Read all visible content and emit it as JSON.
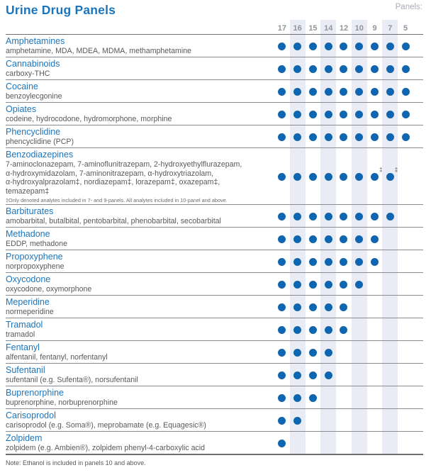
{
  "title": "Urine Drug Panels",
  "panels_label": "Panels:",
  "columns": [
    17,
    16,
    15,
    14,
    12,
    10,
    9,
    7,
    5
  ],
  "striped_columns": [
    16,
    14,
    10,
    7
  ],
  "colors": {
    "accent_blue": "#1C75BC",
    "dot_blue": "#0F66B0",
    "stripe": "#E9ECF4",
    "header_gray": "#939598",
    "text_gray": "#58595B"
  },
  "rows": [
    {
      "name": "Amphetamines",
      "analytes": "amphetamine, MDA, MDEA, MDMA, methamphetamine",
      "panels": [
        17,
        16,
        15,
        14,
        12,
        10,
        9,
        7,
        5
      ]
    },
    {
      "name": "Cannabinoids",
      "analytes": "carboxy-THC",
      "panels": [
        17,
        16,
        15,
        14,
        12,
        10,
        9,
        7,
        5
      ]
    },
    {
      "name": "Cocaine",
      "analytes": "benzoylecgonine",
      "panels": [
        17,
        16,
        15,
        14,
        12,
        10,
        9,
        7,
        5
      ]
    },
    {
      "name": "Opiates",
      "analytes": "codeine, hydrocodone, hydromorphone, morphine",
      "panels": [
        17,
        16,
        15,
        14,
        12,
        10,
        9,
        7,
        5
      ]
    },
    {
      "name": "Phencyclidine",
      "analytes": "phencyclidine (PCP)",
      "panels": [
        17,
        16,
        15,
        14,
        12,
        10,
        9,
        7,
        5
      ]
    },
    {
      "name": "Benzodiazepines",
      "analytes": "7-aminoclonazepam, 7-aminoflunitrazepam, 2-hydroxyethylflurazepam,\nα-hydroxymidazolam, 7-aminonitrazepam, α-hydroxytriazolam,\nα-hydroxyalprazolam‡, nordiazepam‡, lorazepam‡, oxazepam‡,\ntemazepam‡",
      "panels": [
        17,
        16,
        15,
        14,
        12,
        10,
        9,
        7
      ],
      "dagger_panels": [
        9,
        7
      ],
      "footnote": "‡Only denoted analytes included in 7- and 9-panels. All analytes included in 10-panel and above."
    },
    {
      "name": "Barbiturates",
      "analytes": "amobarbital, butalbital, pentobarbital, phenobarbital, secobarbital",
      "panels": [
        17,
        16,
        15,
        14,
        12,
        10,
        9,
        7
      ]
    },
    {
      "name": "Methadone",
      "analytes": "EDDP, methadone",
      "panels": [
        17,
        16,
        15,
        14,
        12,
        10,
        9
      ]
    },
    {
      "name": "Propoxyphene",
      "analytes": "norpropoxyphene",
      "panels": [
        17,
        16,
        15,
        14,
        12,
        10,
        9
      ]
    },
    {
      "name": "Oxycodone",
      "analytes": "oxycodone, oxymorphone",
      "panels": [
        17,
        16,
        15,
        14,
        12,
        10
      ]
    },
    {
      "name": "Meperidine",
      "analytes": "normeperidine",
      "panels": [
        17,
        16,
        15,
        14,
        12
      ]
    },
    {
      "name": "Tramadol",
      "analytes": "tramadol",
      "panels": [
        17,
        16,
        15,
        14,
        12
      ]
    },
    {
      "name": "Fentanyl",
      "analytes": "alfentanil, fentanyl, norfentanyl",
      "panels": [
        17,
        16,
        15,
        14
      ]
    },
    {
      "name": "Sufentanil",
      "analytes": "sufentanil (e.g. Sufenta®), norsufentanil",
      "panels": [
        17,
        16,
        15,
        14
      ]
    },
    {
      "name": "Buprenorphine",
      "analytes": "buprenorphine, norbuprenorphine",
      "panels": [
        17,
        16,
        15
      ]
    },
    {
      "name": "Carisoprodol",
      "analytes": "carisoprodol (e.g. Soma®), meprobamate (e.g. Equagesic®)",
      "panels": [
        17,
        16
      ]
    },
    {
      "name": "Zolpidem",
      "analytes": "zolpidem (e.g. Ambien®), zolpidem phenyl-4-carboxylic acid",
      "panels": [
        17
      ]
    }
  ],
  "note": "Note: Ethanol is included in panels 10 and above."
}
